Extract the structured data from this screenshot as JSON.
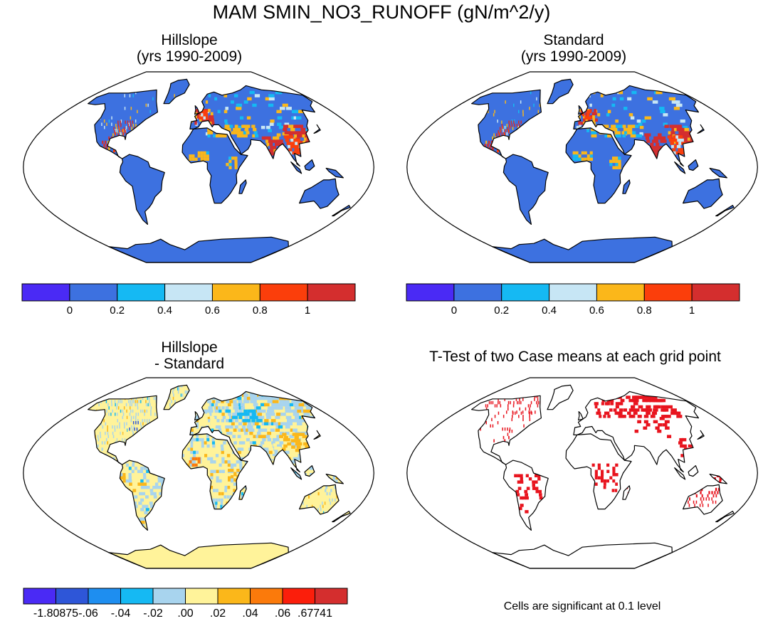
{
  "title": "MAM SMIN_NO3_RUNOFF (gN/m^2/y)",
  "colors": {
    "land": "#3d71e0",
    "coast": "#000000",
    "ocean": "#ffffff",
    "hot": "#d23232",
    "diff_bg": "#fff39a",
    "sig": "#e8141e"
  },
  "chart_data": [
    {
      "type": "heatmap",
      "id": "hillslope",
      "title": "Hillslope",
      "subtitle": "(yrs 1990-2009)",
      "projection": "Robinson",
      "colorbar": {
        "ticks": [
          "0",
          "0.2",
          "0.4",
          "0.6",
          "0.8",
          "1"
        ],
        "levels": [
          0,
          0.2,
          0.4,
          0.6,
          0.8,
          1
        ],
        "colors": [
          "#4a2af5",
          "#3d71e0",
          "#15b9f3",
          "#c7e6f5",
          "#fbb71a",
          "#fb3e0b",
          "#d42e2e"
        ]
      }
    },
    {
      "type": "heatmap",
      "id": "standard",
      "title": "Standard",
      "subtitle": "(yrs 1990-2009)",
      "projection": "Robinson",
      "colorbar": {
        "ticks": [
          "0",
          "0.2",
          "0.4",
          "0.6",
          "0.8",
          "1"
        ],
        "levels": [
          0,
          0.2,
          0.4,
          0.6,
          0.8,
          1
        ],
        "colors": [
          "#4a2af5",
          "#3d71e0",
          "#15b9f3",
          "#c7e6f5",
          "#fbb71a",
          "#fb3e0b",
          "#d42e2e"
        ]
      }
    },
    {
      "type": "heatmap",
      "id": "difference",
      "title": "Hillslope",
      "subtitle": "- Standard",
      "projection": "Robinson",
      "colorbar": {
        "ticks": [
          "-1.80875",
          "-.06",
          "-.04",
          "-.02",
          ".00",
          ".02",
          ".04",
          ".06",
          ".67741"
        ],
        "levels": [
          -1.80875,
          -0.06,
          -0.04,
          -0.02,
          0.0,
          0.02,
          0.04,
          0.06,
          0.67741
        ],
        "colors": [
          "#4a2af5",
          "#2e56d8",
          "#1e8ef0",
          "#15b9f3",
          "#a8d4ee",
          "#fff39a",
          "#fbb71a",
          "#fb7a0b",
          "#fb1e0b",
          "#d42e2e"
        ]
      }
    },
    {
      "type": "heatmap",
      "id": "ttest",
      "title": "T-Test of two Case means at each grid point",
      "projection": "Robinson",
      "note": "Cells are significant at 0.1 level"
    }
  ]
}
